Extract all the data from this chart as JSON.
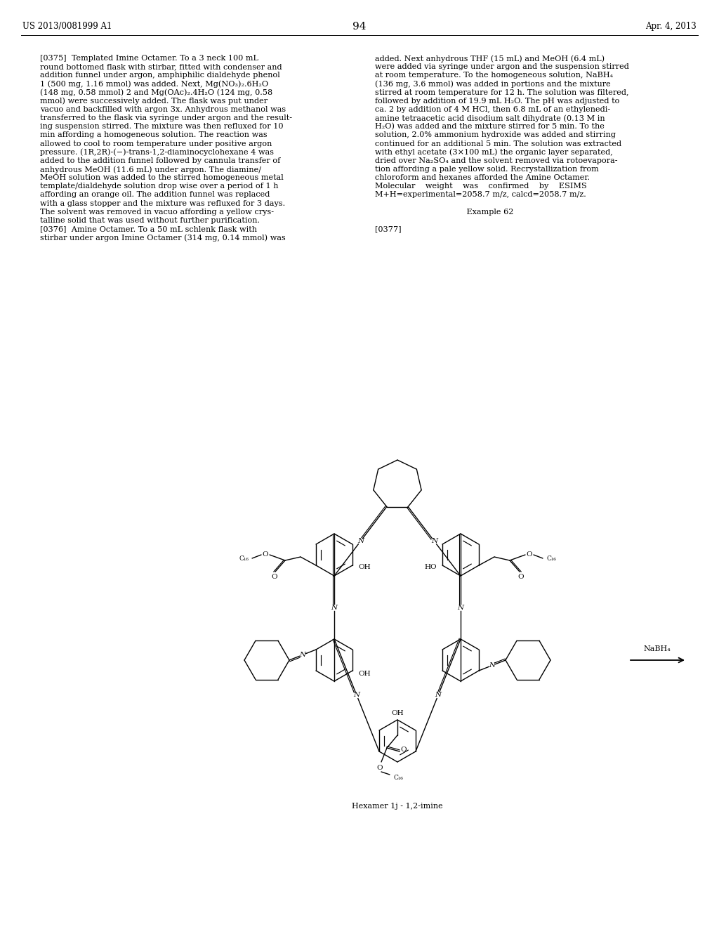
{
  "patent_number": "US 2013/0081999 A1",
  "date": "Apr. 4, 2013",
  "page_number": "94",
  "left_lines": [
    "[0375]  Templated Imine Octamer. To a 3 neck 100 mL",
    "round bottomed flask with stirbar, fitted with condenser and",
    "addition funnel under argon, amphiphilic dialdehyde phenol",
    "1 (500 mg, 1.16 mmol) was added. Next, Mg(NO₃)₂.6H₂O",
    "(148 mg, 0.58 mmol) 2 and Mg(OAc)₂.4H₂O (124 mg, 0.58",
    "mmol) were successively added. The flask was put under",
    "vacuo and backfilled with argon 3x. Anhydrous methanol was",
    "transferred to the flask via syringe under argon and the result-",
    "ing suspension stirred. The mixture was then refluxed for 10",
    "min affording a homogeneous solution. The reaction was",
    "allowed to cool to room temperature under positive argon",
    "pressure. (1R,2R)-(−)-trans-1,2-diaminocyclohexane 4 was",
    "added to the addition funnel followed by cannula transfer of",
    "anhydrous MeOH (11.6 mL) under argon. The diamine/",
    "MeOH solution was added to the stirred homogeneous metal",
    "template/dialdehyde solution drop wise over a period of 1 h",
    "affording an orange oil. The addition funnel was replaced",
    "with a glass stopper and the mixture was refluxed for 3 days.",
    "The solvent was removed in vacuo affording a yellow crys-",
    "talline solid that was used without further purification.",
    "[0376]  Amine Octamer. To a 50 mL schlenk flask with",
    "stirbar under argon Imine Octamer (314 mg, 0.14 mmol) was"
  ],
  "right_lines": [
    "added. Next anhydrous THF (15 mL) and MeOH (6.4 mL)",
    "were added via syringe under argon and the suspension stirred",
    "at room temperature. To the homogeneous solution, NaBH₄",
    "(136 mg, 3.6 mmol) was added in portions and the mixture",
    "stirred at room temperature for 12 h. The solution was filtered,",
    "followed by addition of 19.9 mL H₂O. The pH was adjusted to",
    "ca. 2 by addition of 4 M HCl, then 6.8 mL of an ethylenedi-",
    "amine tetraacetic acid disodium salt dihydrate (0.13 M in",
    "H₂O) was added and the mixture stirred for 5 min. To the",
    "solution, 2.0% ammonium hydroxide was added and stirring",
    "continued for an additional 5 min. The solution was extracted",
    "with ethyl acetate (3×100 mL) the organic layer separated,",
    "dried over Na₂SO₄ and the solvent removed via rotoevapora-",
    "tion affording a pale yellow solid. Recrystallization from",
    "chloroform and hexanes afforded the Amine Octamer.",
    "Molecular    weight    was    confirmed    by    ESIMS",
    "M+H=experimental=2058.7 m/z, calcd=2058.7 m/z.",
    "",
    "                                    Example 62",
    "",
    "[0377]"
  ],
  "caption": "Hexamer 1j - 1,2-imine",
  "background_color": "#ffffff"
}
